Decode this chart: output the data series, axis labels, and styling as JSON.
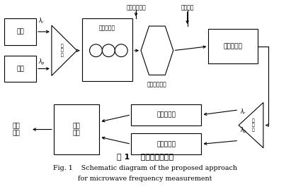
{
  "title_cn": "图 1    瞬时测频原理图",
  "title_en_line1": "Fig. 1    Schematic diagram of the proposed approach",
  "title_en_line2": "for microwave frequency measurement",
  "guangyuan1_label": "光源",
  "guangyuan2_label": "光源",
  "heboji1_label": "合\n波\n器",
  "pzctrl_label": "偏置控制器",
  "photon_filter_label": "光子滤波器",
  "intensity_mod_label": "光强度调制器",
  "detector1_label": "光电探测器",
  "detector2_label": "光电探测器",
  "heboji2_label": "合\n波\n器",
  "signal_proc_label": "信号\n处理",
  "pinlv_out_label": "频率\n输出",
  "rf_input_label": "射频信号输入",
  "bias_voltage_label": "偏置电压",
  "lambda_r": "λr",
  "lambda_p": "λp"
}
